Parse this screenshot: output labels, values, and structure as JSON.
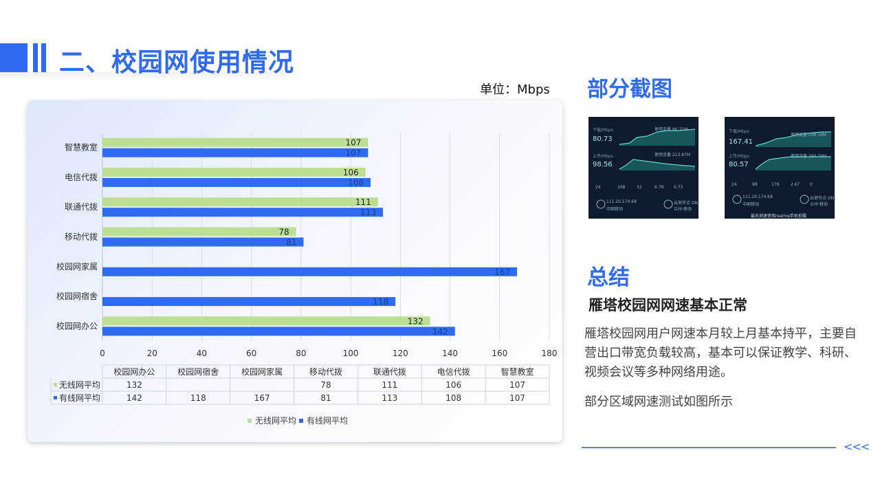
{
  "header": {
    "title": "二、校园网使用情况",
    "unit": "单位：Mbps"
  },
  "chart_data": {
    "type": "bar",
    "orientation": "horizontal",
    "categories": [
      "校园网办公",
      "校园网宿舍",
      "校园网家属",
      "移动代拨",
      "联通代拨",
      "电信代拨",
      "智慧教室"
    ],
    "series": [
      {
        "name": "无线网平均",
        "values": [
          132,
          null,
          null,
          78,
          111,
          106,
          107
        ],
        "color": "#bddf93"
      },
      {
        "name": "有线网平均",
        "values": [
          142,
          118,
          167,
          81,
          113,
          108,
          107
        ],
        "color": "#2f6bf0"
      }
    ],
    "xlim": [
      0,
      180
    ],
    "xticks": [
      0,
      20,
      40,
      60,
      80,
      100,
      120,
      140,
      160,
      180
    ],
    "grid": true,
    "legend": "bottom",
    "data_table": true
  },
  "right": {
    "screenshots_title": "部分截图",
    "summary_title": "总结",
    "summary_subtitle": "雁塔校园网网速基本正常",
    "summary_body": "雁塔校园网用户网速本月较上月基本持平，主要自营出口带宽负载较高，基本可以保证教学、科研、视频会议等多种网络用途。",
    "summary_note": "部分区域网速测试如图所示"
  },
  "screenshots": [
    {
      "down_label": "下载/Mbps",
      "down": "80.73",
      "up_label": "上传/Mbps",
      "up": "98.56",
      "used1": "使用流量 86.71M",
      "used2": "使用流量 213.87M",
      "stats": [
        "24",
        "298",
        "32",
        "6.78",
        "6.73"
      ],
      "ip": "111.20.174.68",
      "carrier": "中国移动",
      "node": "云测节点 ON",
      "city": "兰州·移动",
      "footer": ""
    },
    {
      "down_label": "下载/Mbps",
      "down": "167.41",
      "up_label": "上传/Mbps",
      "up": "80.57",
      "used1": "使用流量 249.19M",
      "used2": "使用流量 280.79M",
      "stats": [
        "24",
        "88",
        "176",
        "2.67",
        "0"
      ],
      "ip": "111.20.174.68",
      "carrier": "中国移动",
      "node": "云测节点 ON",
      "city": "兰州·移动",
      "footer": "最后测速使用realme手机拍摄"
    }
  ],
  "footer": {
    "arrows": "<<<"
  }
}
